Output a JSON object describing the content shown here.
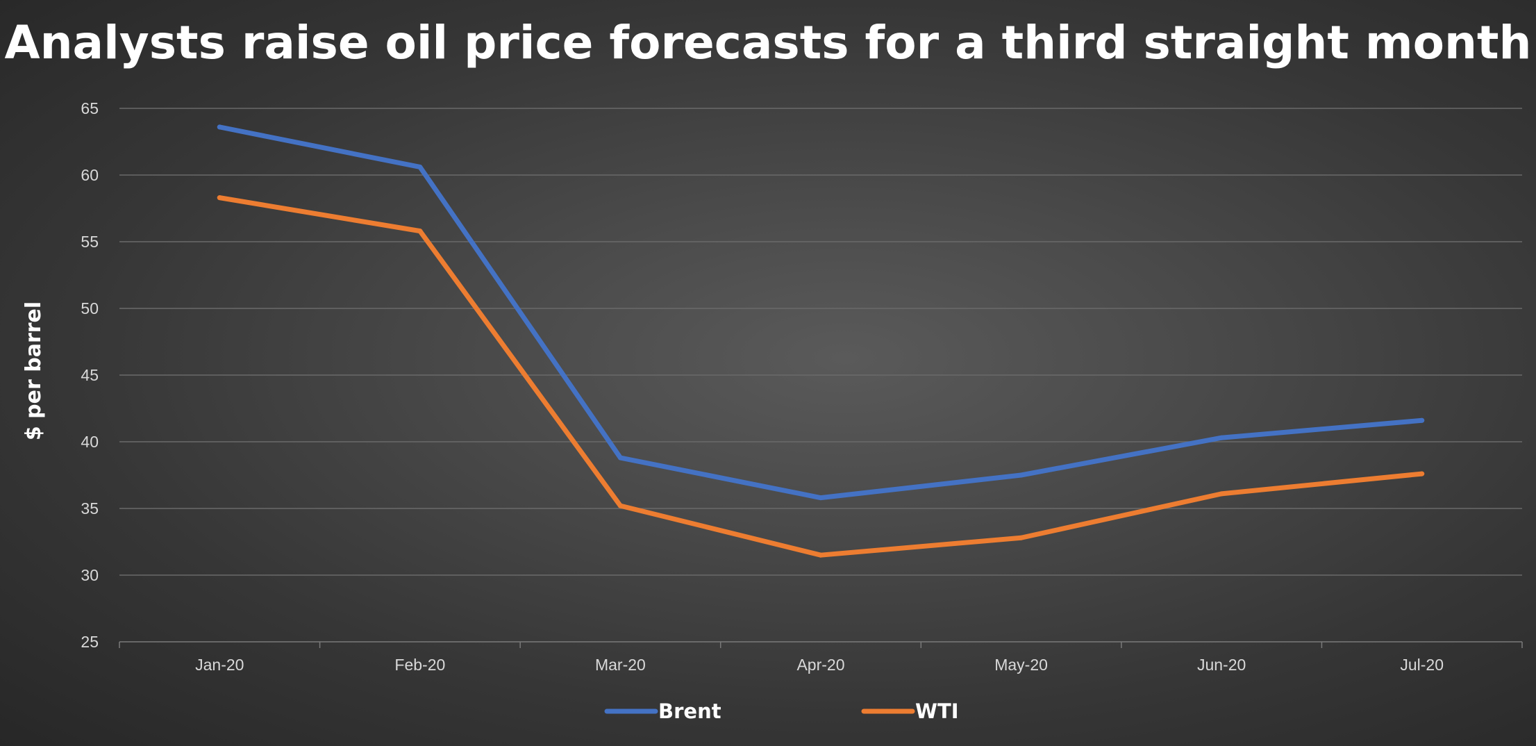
{
  "chart_data": {
    "type": "line",
    "title": "Analysts raise oil price forecasts for a third straight month",
    "xlabel": "",
    "ylabel": "$ per barrel",
    "categories": [
      "Jan-20",
      "Feb-20",
      "Mar-20",
      "Apr-20",
      "May-20",
      "Jun-20",
      "Jul-20"
    ],
    "ylim": [
      25,
      65
    ],
    "yticks": [
      25,
      30,
      35,
      40,
      45,
      50,
      55,
      60,
      65
    ],
    "grid": true,
    "legend_position": "bottom",
    "series": [
      {
        "name": "Brent",
        "color": "#4472c4",
        "values": [
          63.6,
          60.6,
          38.8,
          35.8,
          37.5,
          40.3,
          41.6
        ]
      },
      {
        "name": "WTI",
        "color": "#ed7d31",
        "values": [
          58.3,
          55.8,
          35.2,
          31.5,
          32.8,
          36.1,
          37.6
        ]
      }
    ]
  }
}
